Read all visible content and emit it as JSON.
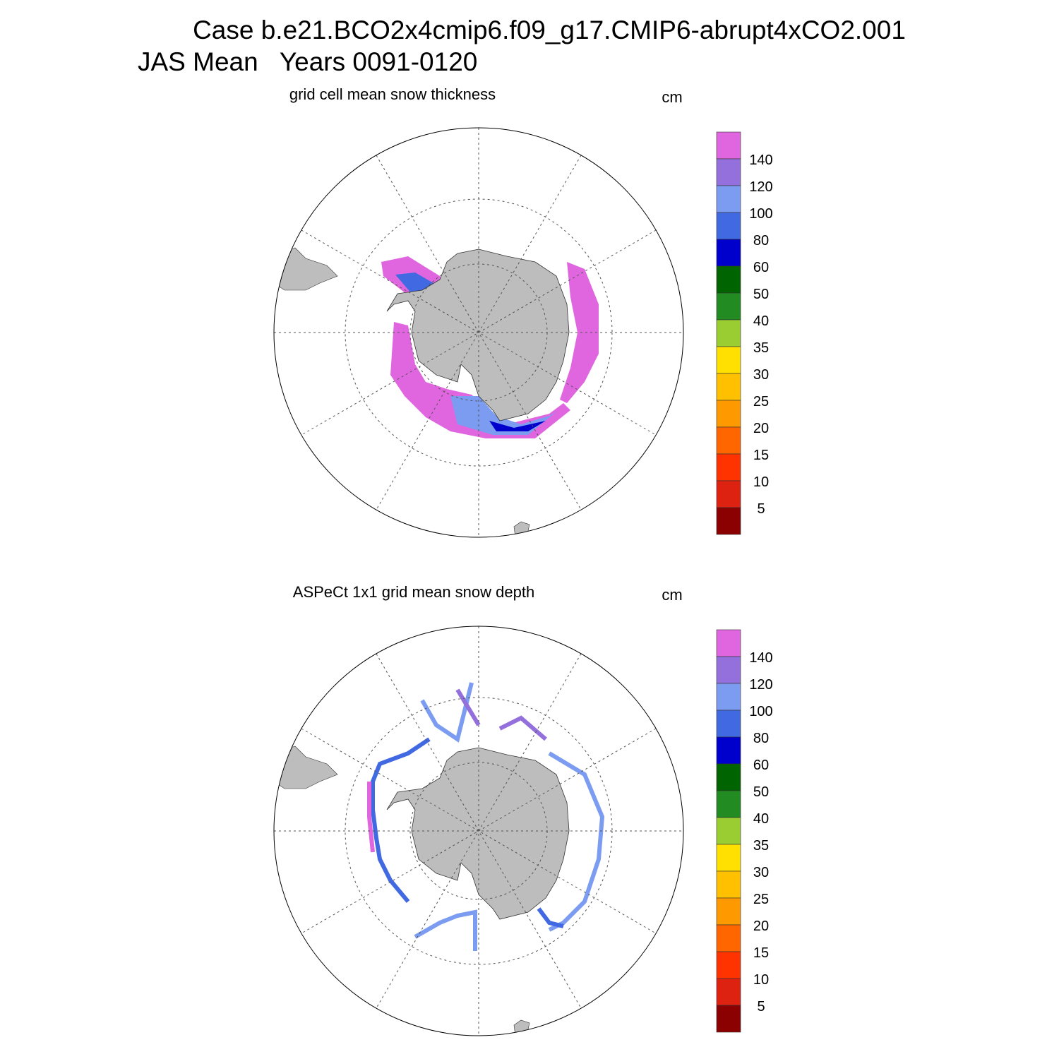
{
  "title": [
    "Case b.e21.BCO2x4cmip6.f09_g17.CMIP6-abrupt4xCO2.001",
    "JAS Mean   Years 0091-0120"
  ],
  "panels": [
    {
      "title": "grid cell mean snow thickness",
      "units": "cm"
    },
    {
      "title": "ASPeCt 1x1 grid mean snow depth",
      "units": "cm"
    }
  ],
  "colorbar": {
    "levels": [
      5,
      10,
      15,
      20,
      25,
      30,
      35,
      40,
      50,
      60,
      80,
      100,
      120,
      140
    ],
    "colors": [
      "#e066e0",
      "#9370db",
      "#7b9cf0",
      "#4169e1",
      "#0000cd",
      "#006400",
      "#228b22",
      "#9acd32",
      "#ffe000",
      "#ffc000",
      "#ff9900",
      "#ff6600",
      "#ff3300",
      "#dd2211",
      "#8b0000"
    ]
  }
}
